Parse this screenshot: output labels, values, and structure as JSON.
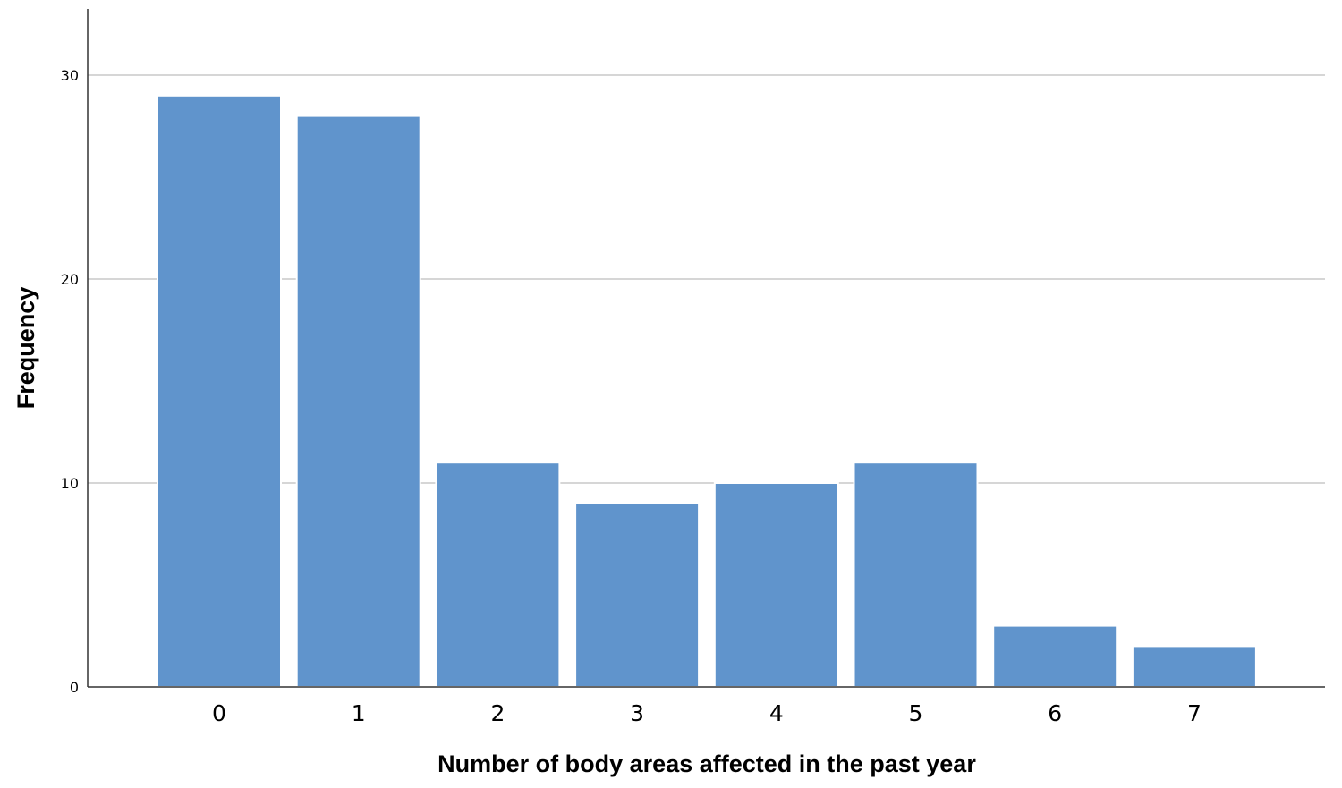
{
  "colors": {
    "bar_fill": "#6094cc",
    "bar_stroke": "#ffffff",
    "grid": "#c8c8c8",
    "axis": "#333333",
    "background": "#ffffff"
  },
  "chart_data": {
    "type": "bar",
    "title": "",
    "xlabel": "Number of body areas affected in the past year",
    "ylabel": "Frequency",
    "categories": [
      "0",
      "1",
      "2",
      "3",
      "4",
      "5",
      "6",
      "7"
    ],
    "values": [
      29,
      28,
      11,
      9,
      10,
      11,
      3,
      2
    ],
    "ylim": [
      0,
      33
    ],
    "yticks": [
      "0",
      "10",
      "20",
      "30"
    ],
    "grid": true,
    "legend": "none"
  }
}
